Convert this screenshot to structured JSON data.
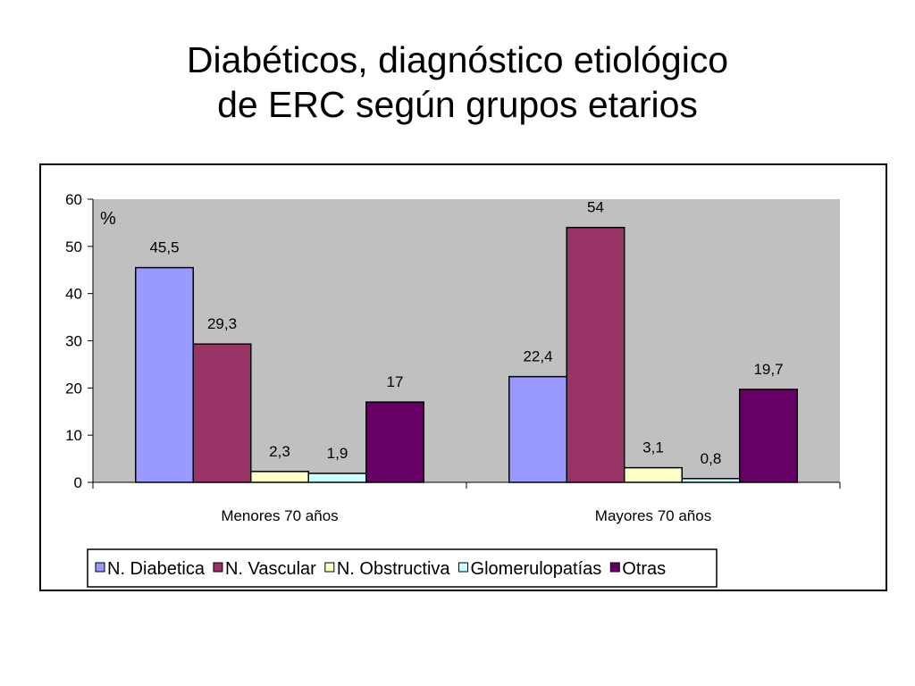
{
  "slide": {
    "title_line1": "Diabéticos, diagnóstico etiológico",
    "title_line2": "de ERC según grupos etarios"
  },
  "chart_data": {
    "type": "bar",
    "title": "",
    "xlabel": "",
    "ylabel": "%",
    "ylim": [
      0,
      60
    ],
    "yticks": [
      "0",
      "10",
      "20",
      "30",
      "40",
      "50",
      "60"
    ],
    "grid": false,
    "plot_background": "#c0c0c0",
    "legend_position": "bottom",
    "categories": [
      "Menores 70 años",
      "Mayores 70 años"
    ],
    "series": [
      {
        "name": "N. Diabetica",
        "color": "#9999ff",
        "values": [
          45.5,
          22.4
        ],
        "labels": [
          "45,5",
          "22,4"
        ]
      },
      {
        "name": "N. Vascular",
        "color": "#993366",
        "values": [
          29.3,
          54
        ],
        "labels": [
          "29,3",
          "54"
        ]
      },
      {
        "name": "N. Obstructiva",
        "color": "#ffffcc",
        "values": [
          2.3,
          3.1
        ],
        "labels": [
          "2,3",
          "3,1"
        ]
      },
      {
        "name": "Glomerulopatías",
        "color": "#ccffff",
        "values": [
          1.9,
          0.8
        ],
        "labels": [
          "1,9",
          "0,8"
        ]
      },
      {
        "name": "Otras",
        "color": "#660066",
        "values": [
          17,
          19.7
        ],
        "labels": [
          "17",
          "19,7"
        ]
      }
    ]
  }
}
